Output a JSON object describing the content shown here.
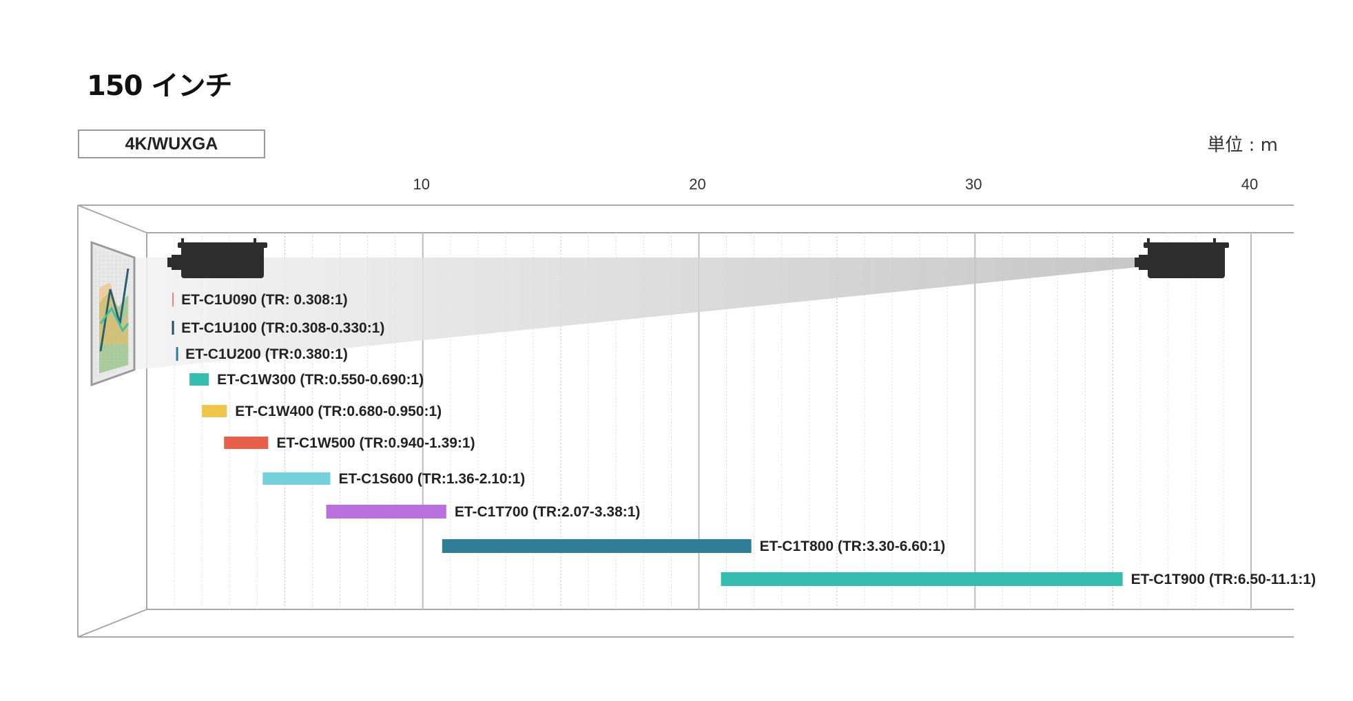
{
  "title": "150 インチ",
  "tab_label": "4K/WUXGA",
  "unit_label": "単位 : m",
  "colors": {
    "C1U090": "#e8604c",
    "C1U100": "#1f4f6e",
    "C1U200": "#2a7f8f",
    "C1W300": "#35bdb0",
    "C1W400": "#f0c64a",
    "C1W500": "#e8604c",
    "C1S600": "#74d1dc",
    "C1T700": "#bb6fe0",
    "C1T800": "#2f7e98",
    "C1T900": "#35bdb0"
  },
  "chart_data": {
    "type": "bar",
    "orientation": "horizontal-range",
    "xlabel": "",
    "unit": "m",
    "xlim": [
      0,
      40
    ],
    "ticks": [
      10,
      20,
      30,
      40
    ],
    "grid": true,
    "series": [
      {
        "label": "ET-C1U090 (TR: 0.308:1)",
        "range": [
          0.85,
          0.95
        ],
        "color_key": "C1U090"
      },
      {
        "label": "ET-C1U100 (TR:0.308-0.330:1)",
        "range": [
          0.85,
          0.95
        ],
        "color_key": "C1U100"
      },
      {
        "label": "ET-C1U200 (TR:0.380:1)",
        "range": [
          1.0,
          1.1
        ],
        "color_key": "C1U200"
      },
      {
        "label": "ET-C1W300 (TR:0.550-0.690:1)",
        "range": [
          1.55,
          2.25
        ],
        "color_key": "C1W300"
      },
      {
        "label": "ET-C1W400 (TR:0.680-0.950:1)",
        "range": [
          2.0,
          2.9
        ],
        "color_key": "C1W400"
      },
      {
        "label": "ET-C1W500 (TR:0.940-1.39:1)",
        "range": [
          2.8,
          4.4
        ],
        "color_key": "C1W500"
      },
      {
        "label": "ET-C1S600 (TR:1.36-2.10:1)",
        "range": [
          4.2,
          6.65
        ],
        "color_key": "C1S600"
      },
      {
        "label": "ET-C1T700 (TR:2.07-3.38:1)",
        "range": [
          6.5,
          10.85
        ],
        "color_key": "C1T700"
      },
      {
        "label": "ET-C1T800 (TR:3.30-6.60:1)",
        "range": [
          10.7,
          21.9
        ],
        "color_key": "C1T800"
      },
      {
        "label": "ET-C1T900 (TR:6.50-11.1:1)",
        "range": [
          20.8,
          35.35
        ],
        "color_key": "C1T900"
      }
    ]
  }
}
